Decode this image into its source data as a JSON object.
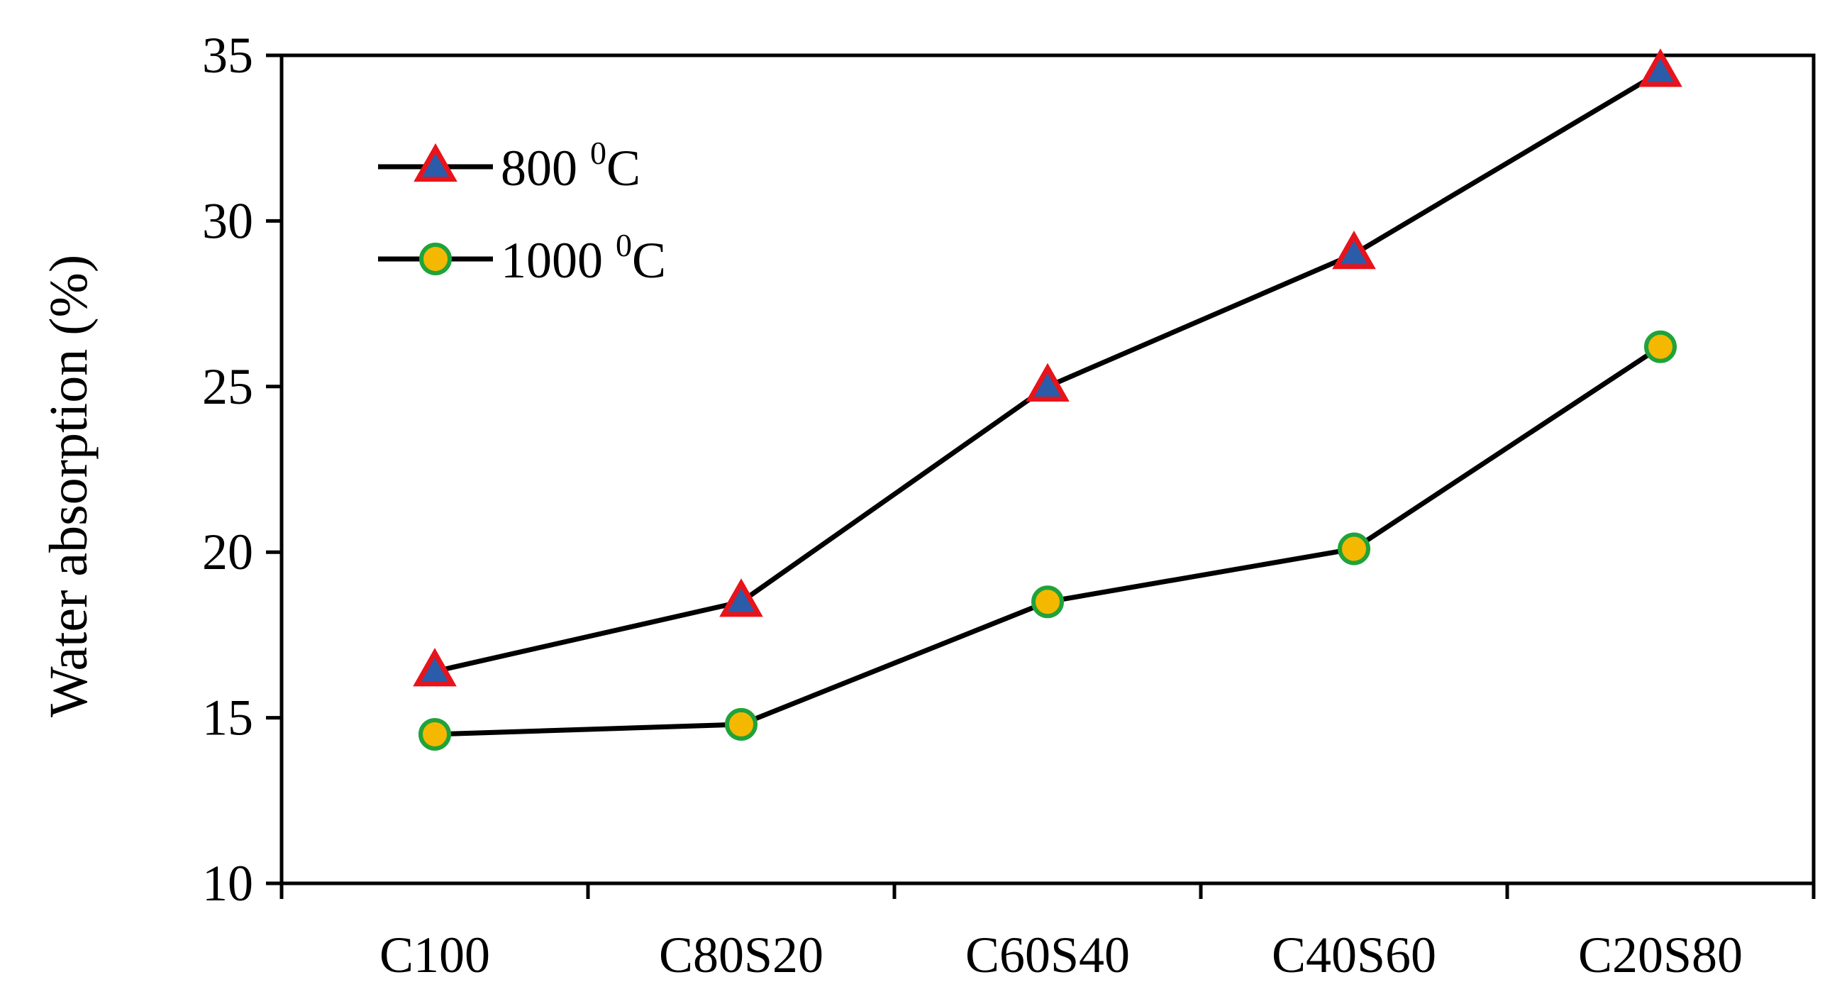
{
  "chart_data": {
    "type": "line",
    "title": "",
    "xlabel": "",
    "ylabel": "Water absorption (%)",
    "categories": [
      "C100",
      "C80S20",
      "C60S40",
      "C40S60",
      "C20S80"
    ],
    "ylim": [
      10,
      35
    ],
    "yticks": [
      "10",
      "15",
      "20",
      "25",
      "30",
      "35"
    ],
    "grid": false,
    "legend_position": "top-left",
    "series": [
      {
        "name": "800 °C",
        "label_main": "800 ",
        "label_sup": "0",
        "label_unit": "C",
        "marker": "triangle",
        "marker_fill": "#2a5caa",
        "marker_edge": "#e8141b",
        "line_color": "#000000",
        "values": [
          16.4,
          18.5,
          25.0,
          29.0,
          34.5
        ]
      },
      {
        "name": "1000 °C",
        "label_main": "1000  ",
        "label_sup": "0",
        "label_unit": "C",
        "marker": "circle",
        "marker_fill": "#f5b800",
        "marker_edge": "#1fa33a",
        "line_color": "#000000",
        "values": [
          14.5,
          14.8,
          18.5,
          20.1,
          26.2
        ]
      }
    ]
  }
}
